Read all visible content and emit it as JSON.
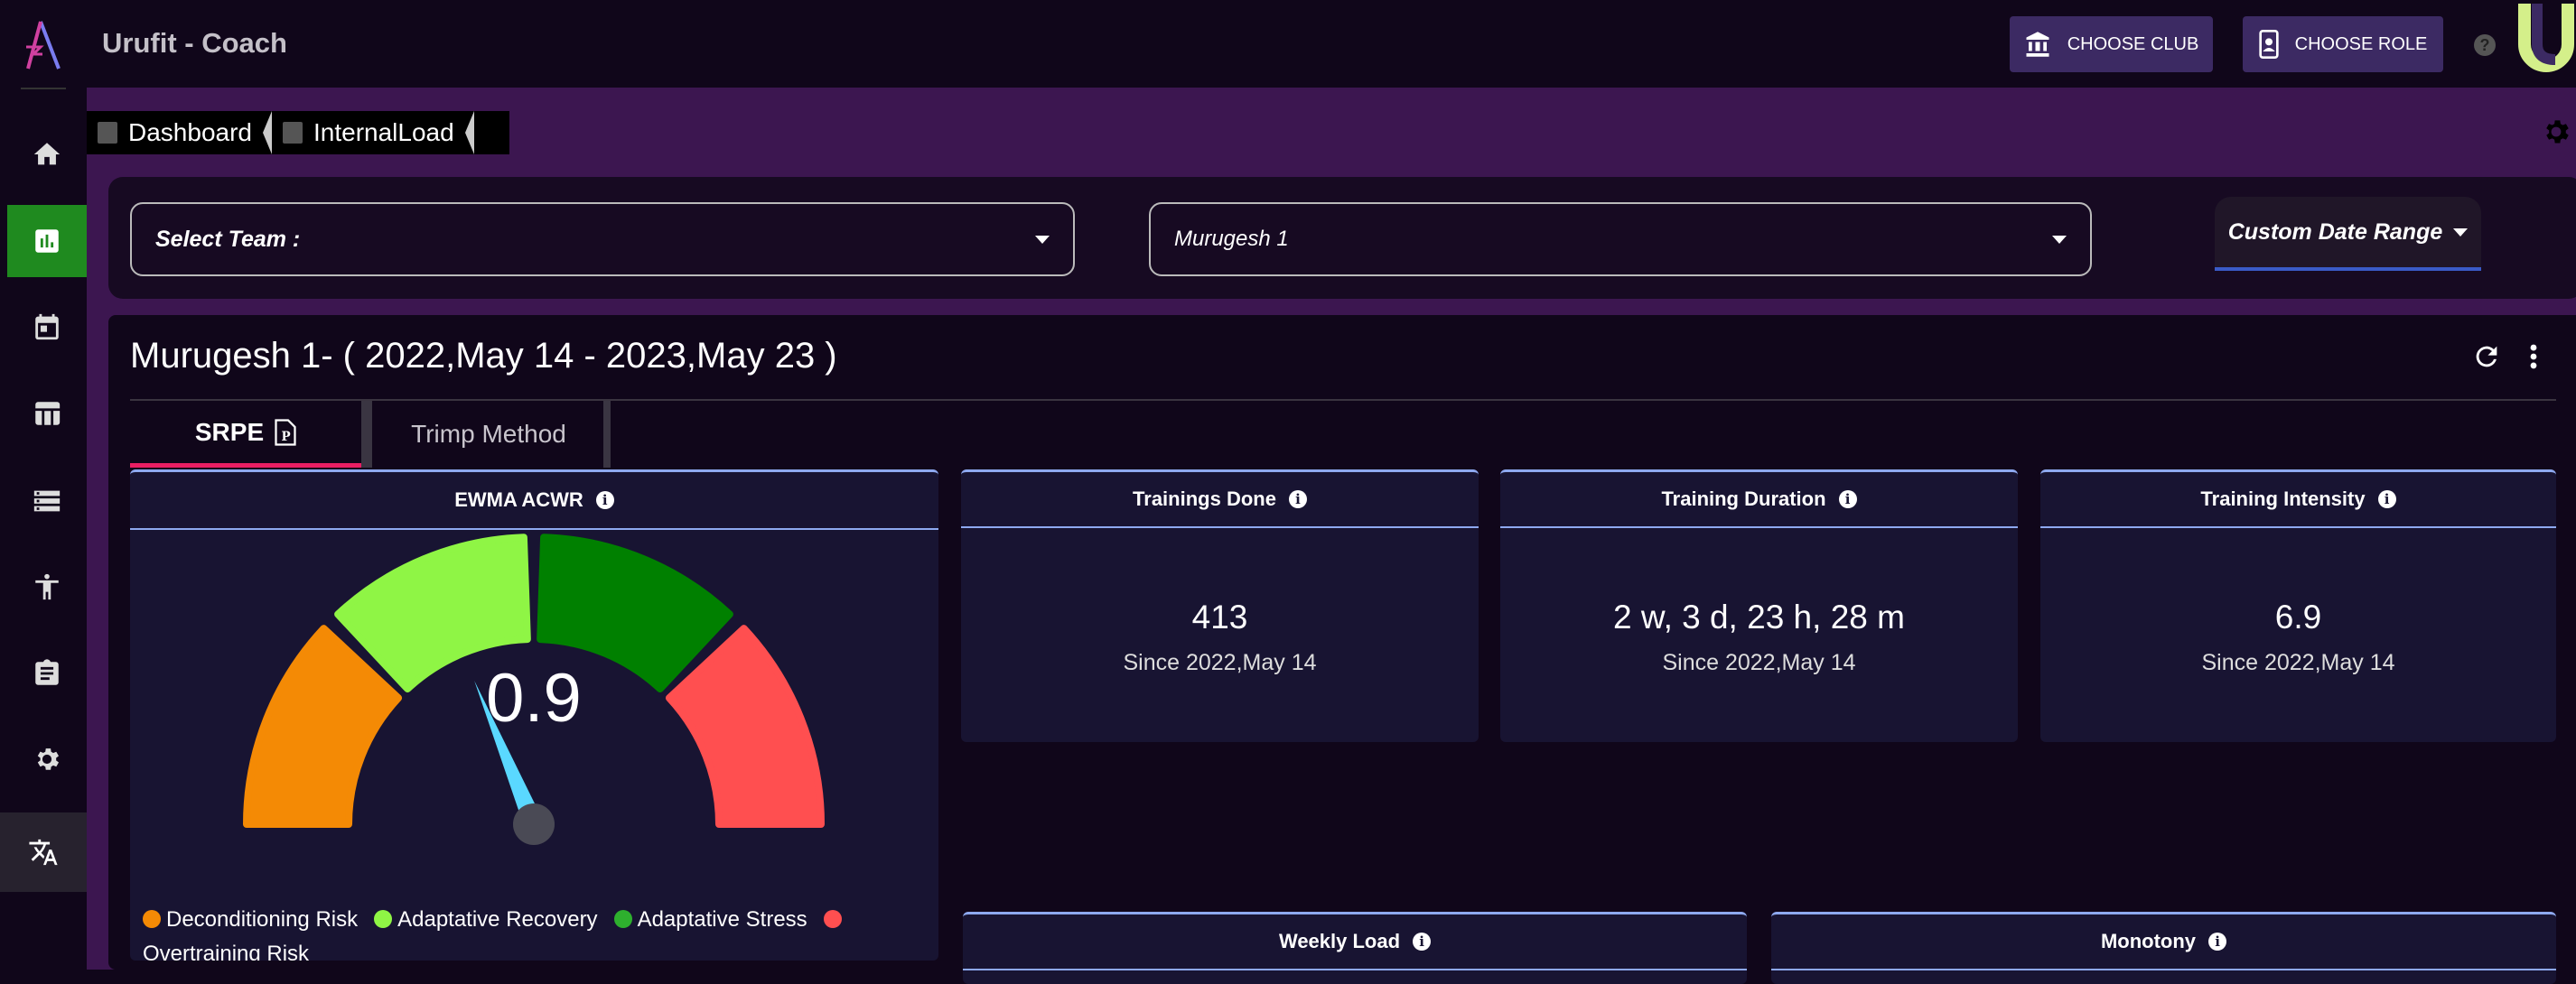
{
  "app": {
    "title": "Urufit - Coach",
    "logo": "urufit-a-logo"
  },
  "topbar": {
    "choose_club": "CHOOSE CLUB",
    "choose_role": "CHOOSE ROLE",
    "help_icon": "help-circle-icon",
    "club_icon": "bank-icon",
    "role_icon": "badge-icon"
  },
  "sidebar": {
    "items": [
      {
        "name": "home",
        "icon": "home-icon"
      },
      {
        "name": "dashboard",
        "icon": "chart-icon",
        "active": true
      },
      {
        "name": "calendar",
        "icon": "calendar-icon"
      },
      {
        "name": "table",
        "icon": "table-icon"
      },
      {
        "name": "list",
        "icon": "list-icon"
      },
      {
        "name": "players",
        "icon": "accessibility-icon"
      },
      {
        "name": "reports",
        "icon": "clipboard-icon"
      },
      {
        "name": "settings",
        "icon": "gear-icon"
      },
      {
        "name": "language",
        "icon": "translate-icon"
      }
    ],
    "active_color": "#1f8a1f"
  },
  "breadcrumb": [
    {
      "label": "Dashboard"
    },
    {
      "label": "InternalLoad"
    }
  ],
  "filters": {
    "team_label": "Select Team :",
    "player_value": "Murugesh 1",
    "date_range": "Custom Date Range"
  },
  "main": {
    "title": "Murugesh 1- ( 2022,May 14 - 2023,May 23 )",
    "tabs": [
      {
        "label": "SRPE",
        "active": true
      },
      {
        "label": "Trimp Method",
        "active": false
      }
    ],
    "accent": "#e91e63"
  },
  "ewma": {
    "title": "EWMA ACWR",
    "value": "0.9",
    "legend": [
      {
        "label": "Deconditioning Risk",
        "color": "#f48a05"
      },
      {
        "label": "Adaptative Recovery",
        "color": "#8ff545"
      },
      {
        "label": "Adaptative Stress",
        "color": "#2eb02e"
      },
      {
        "label": "Overtraining Risk",
        "color": "#ff4f50"
      }
    ],
    "segment_colors": [
      "#f48a05",
      "#8ff545",
      "#008000",
      "#ff4f50"
    ],
    "needle_color": "#5ad8ff"
  },
  "stats": [
    {
      "title": "Trainings Done",
      "value": "413",
      "sub": "Since 2022,May 14"
    },
    {
      "title": "Training Duration",
      "value": "2 w, 3 d, 23 h, 28 m",
      "sub": "Since 2022,May 14"
    },
    {
      "title": "Training Intensity",
      "value": "6.9",
      "sub": "Since 2022,May 14"
    }
  ],
  "bottom_cards": [
    {
      "title": "Weekly Load"
    },
    {
      "title": "Monotony"
    }
  ]
}
